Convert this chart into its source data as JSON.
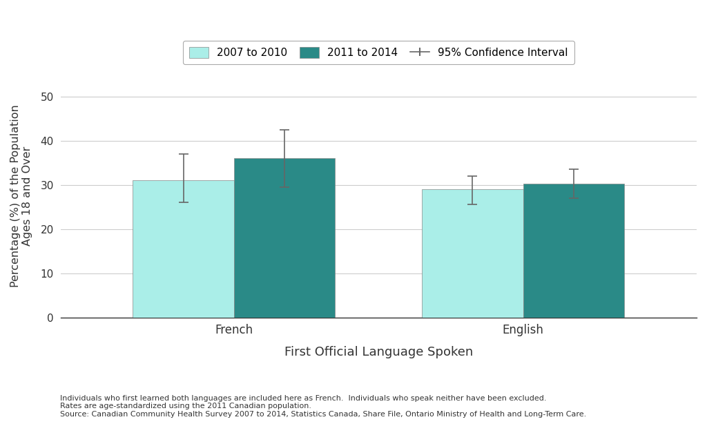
{
  "groups": [
    "French",
    "English"
  ],
  "series": [
    {
      "label": "2007 to 2010",
      "color": "#aaeee8",
      "values": [
        31.0,
        29.0
      ],
      "ci_lower": [
        26.0,
        25.5
      ],
      "ci_upper": [
        37.0,
        32.0
      ]
    },
    {
      "label": "2011 to 2014",
      "color": "#2a8a87",
      "values": [
        36.0,
        30.3
      ],
      "ci_lower": [
        29.5,
        27.0
      ],
      "ci_upper": [
        42.5,
        33.5
      ]
    }
  ],
  "ylabel": "Percentage (%) of the Population\nAges 18 and Over",
  "xlabel": "First Official Language Spoken",
  "ylim": [
    0,
    55
  ],
  "yticks": [
    0,
    10,
    20,
    30,
    40,
    50
  ],
  "ci_label": "95% Confidence Interval",
  "ci_color": "#666666",
  "background_color": "#ffffff",
  "grid_color": "#cccccc",
  "footnote_line1": "Individuals who first learned both languages are included here as French.  Individuals who speak neither have been excluded.",
  "footnote_line2": "Rates are age-standardized using the 2011 Canadian population.",
  "footnote_line3": "Source: Canadian Community Health Survey 2007 to 2014, Statistics Canada, Share File, Ontario Ministry of Health and Long-Term Care.",
  "axis_color": "#333333"
}
